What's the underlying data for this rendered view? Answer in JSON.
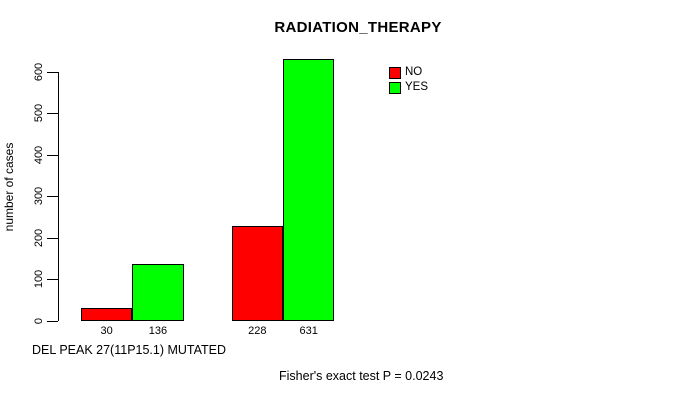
{
  "chart_data": {
    "type": "bar",
    "title": "RADIATION_THERAPY",
    "ylabel": "number of cases",
    "xlabel": "DEL PEAK 27(11P15.1) MUTATED",
    "annotation": "Fisher's exact test P = 0.0243",
    "ylim": [
      0,
      600
    ],
    "yticks": [
      0,
      100,
      200,
      300,
      400,
      500,
      600
    ],
    "grid": false,
    "legend_position": "top-right",
    "legend": [
      {
        "label": "NO",
        "color": "#ff0000"
      },
      {
        "label": "YES",
        "color": "#00ff00"
      }
    ],
    "series": [
      {
        "name": "NO",
        "color": "#ff0000",
        "values": [
          30,
          228
        ]
      },
      {
        "name": "YES",
        "color": "#00ff00",
        "values": [
          136,
          631
        ]
      }
    ],
    "bar_count_labels": [
      [
        "30",
        "136"
      ],
      [
        "228",
        "631"
      ]
    ]
  }
}
